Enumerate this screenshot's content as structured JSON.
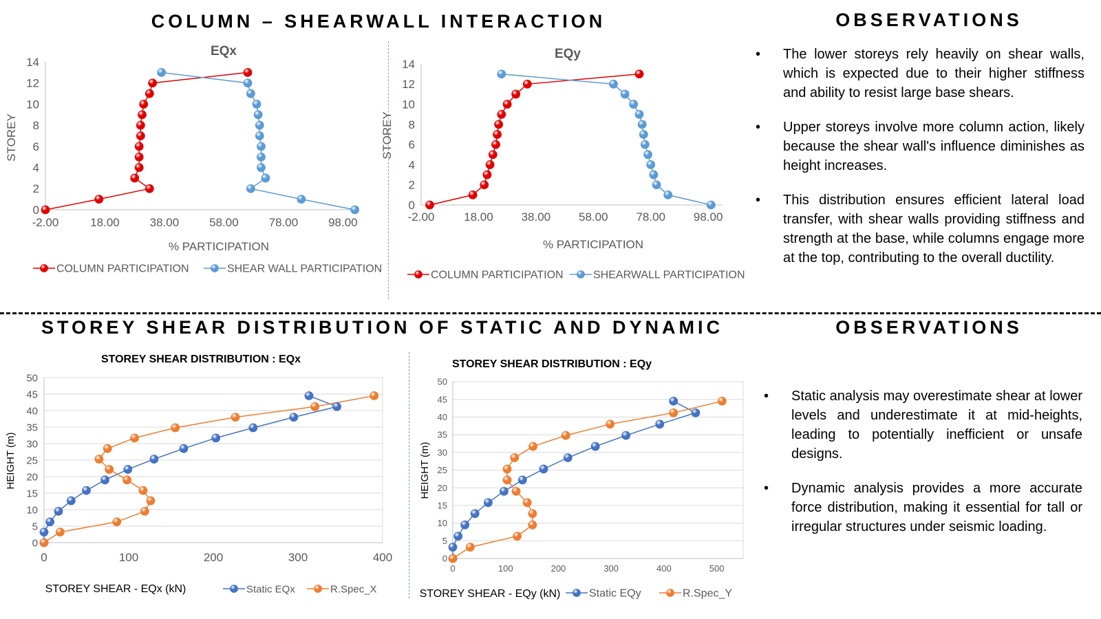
{
  "titles": {
    "top_left": "COLUMN – SHEARWALL INTERACTION",
    "top_right": "OBSERVATIONS",
    "bottom_left": "STOREY SHEAR DISTRIBUTION OF STATIC AND DYNAMIC",
    "bottom_right": "OBSERVATIONS"
  },
  "observations_top": [
    "The lower storeys rely heavily on shear walls, which is expected due to their higher stiffness and ability to resist large base shears.",
    "Upper storeys involve more column action, likely because the shear wall's influence diminishes as height increases.",
    "This distribution ensures efficient lateral load transfer, with shear walls providing stiffness and strength at the base, while columns engage more at the top, contributing to the overall ductility."
  ],
  "observations_bottom": [
    "Static analysis may overestimate shear at lower levels and underestimate it at mid-heights, leading to potentially inefficient or unsafe designs.",
    "Dynamic analysis provides a more accurate force distribution, making it essential for tall or irregular structures under seismic loading."
  ],
  "bullet": "•",
  "colors": {
    "red": "#e00000",
    "blue": "#5b9bd5",
    "static_blue": "#4472c4",
    "orange": "#ed7d31",
    "axis_text": "#595959",
    "grid": "#d9d9d9"
  },
  "chart_data": [
    {
      "id": "eqx_participation",
      "type": "scatter",
      "title": "EQx",
      "xlabel": "% PARTICIPATION",
      "ylabel": "STOREY",
      "xlim": [
        -2,
        103
      ],
      "ylim": [
        0,
        14
      ],
      "xticks": [
        -2,
        18,
        38,
        58,
        78,
        98
      ],
      "xtick_labels": [
        "-2.00",
        "18.00",
        "38.00",
        "58.00",
        "78.00",
        "98.00"
      ],
      "yticks": [
        0,
        2,
        4,
        6,
        8,
        10,
        12,
        14
      ],
      "grid": false,
      "legend_position": "bottom",
      "series": [
        {
          "name": "COLUMN PARTICIPATION",
          "color": "#e00000",
          "x": [
            -2,
            16,
            33,
            28,
            29.5,
            29.5,
            29.5,
            30,
            30,
            30.5,
            31,
            33,
            34,
            66
          ],
          "y": [
            0,
            1,
            2,
            3,
            4,
            5,
            6,
            7,
            8,
            9,
            10,
            11,
            12,
            13
          ]
        },
        {
          "name": "SHEAR WALL PARTICIPATION",
          "color": "#5b9bd5",
          "x": [
            102,
            84,
            67,
            72,
            70.5,
            70.5,
            70.5,
            70,
            70,
            69.5,
            69,
            67,
            66,
            37
          ],
          "y": [
            0,
            1,
            2,
            3,
            4,
            5,
            6,
            7,
            8,
            9,
            10,
            11,
            12,
            13
          ]
        }
      ]
    },
    {
      "id": "eqy_participation",
      "type": "scatter",
      "title": "EQy",
      "xlabel": "% PARTICIPATION",
      "ylabel": "STOREY",
      "xlim": [
        -2,
        103
      ],
      "ylim": [
        0,
        14
      ],
      "xticks": [
        -2,
        18,
        38,
        58,
        78,
        98
      ],
      "xtick_labels": [
        "-2.00",
        "18.00",
        "38.00",
        "58.00",
        "78.00",
        "98.00"
      ],
      "yticks": [
        0,
        2,
        4,
        6,
        8,
        10,
        12,
        14
      ],
      "grid": false,
      "legend_position": "bottom",
      "series": [
        {
          "name": "COLUMN PARTICIPATION",
          "color": "#e00000",
          "x": [
            1,
            16,
            20,
            21,
            22,
            23,
            24,
            24.5,
            25,
            26,
            28,
            31,
            35,
            74
          ],
          "y": [
            0,
            1,
            2,
            3,
            4,
            5,
            6,
            7,
            8,
            9,
            10,
            11,
            12,
            13
          ]
        },
        {
          "name": "SHEARWALL PARTICIPATION",
          "color": "#5b9bd5",
          "x": [
            99,
            84,
            80,
            79,
            78,
            77,
            76,
            75.5,
            75,
            74,
            72,
            69,
            65,
            26
          ],
          "y": [
            0,
            1,
            2,
            3,
            4,
            5,
            6,
            7,
            8,
            9,
            10,
            11,
            12,
            13
          ]
        }
      ]
    },
    {
      "id": "storey_shear_eqx",
      "type": "scatter",
      "title": "STOREY SHEAR DISTRIBUTION :  EQx",
      "xlabel": "STOREY SHEAR - EQx (kN)",
      "ylabel": "HEIGHT (m)",
      "xlim": [
        0,
        400
      ],
      "ylim": [
        0,
        50
      ],
      "xticks": [
        0,
        100,
        200,
        300,
        400
      ],
      "yticks": [
        0,
        5,
        10,
        15,
        20,
        25,
        30,
        35,
        40,
        45,
        50
      ],
      "grid": true,
      "legend_position": "bottom",
      "series": [
        {
          "name": "Static EQx",
          "color": "#4472c4",
          "x": [
            0,
            0,
            7,
            17,
            32,
            50,
            72,
            99,
            130,
            165,
            203,
            247,
            295,
            346,
            313
          ],
          "y": [
            0,
            3.2,
            6.3,
            9.5,
            12.7,
            15.8,
            19,
            22.2,
            25.3,
            28.5,
            31.7,
            34.8,
            38,
            41.2,
            44.5
          ]
        },
        {
          "name": "R.Spec_X",
          "color": "#ed7d31",
          "x": [
            0,
            19,
            86,
            119,
            126,
            117,
            98,
            77,
            65,
            75,
            107,
            155,
            226,
            320,
            390
          ],
          "y": [
            0,
            3.2,
            6.3,
            9.5,
            12.7,
            15.8,
            19,
            22.2,
            25.3,
            28.5,
            31.7,
            34.8,
            38,
            41.2,
            44.5
          ]
        }
      ]
    },
    {
      "id": "storey_shear_eqy",
      "type": "scatter",
      "title": "STOREY SHEAR DISTRIBUTION :  EQy",
      "xlabel": "STOREY SHEAR - EQy (kN)",
      "ylabel": "HEIGHT (m)",
      "xlim": [
        0,
        550
      ],
      "ylim": [
        0,
        50
      ],
      "xticks": [
        0,
        100,
        200,
        300,
        400,
        500
      ],
      "yticks": [
        0,
        5,
        10,
        15,
        20,
        25,
        30,
        35,
        40,
        45,
        50
      ],
      "grid": true,
      "legend_position": "bottom",
      "series": [
        {
          "name": "Static EQy",
          "color": "#4472c4",
          "x": [
            0,
            0,
            10,
            23,
            42,
            67,
            97,
            132,
            172,
            218,
            270,
            328,
            392,
            460,
            418
          ],
          "y": [
            0,
            3.2,
            6.3,
            9.5,
            12.7,
            15.8,
            19,
            22.2,
            25.3,
            28.5,
            31.7,
            34.8,
            38,
            41.2,
            44.5
          ]
        },
        {
          "name": "R.Spec_Y",
          "color": "#ed7d31",
          "x": [
            0,
            33,
            122,
            151,
            151,
            141,
            120,
            103,
            103,
            117,
            152,
            214,
            298,
            418,
            510
          ],
          "y": [
            0,
            3.2,
            6.3,
            9.5,
            12.7,
            15.8,
            19,
            22.2,
            25.3,
            28.5,
            31.7,
            34.8,
            38,
            41.2,
            44.5
          ]
        }
      ]
    }
  ]
}
